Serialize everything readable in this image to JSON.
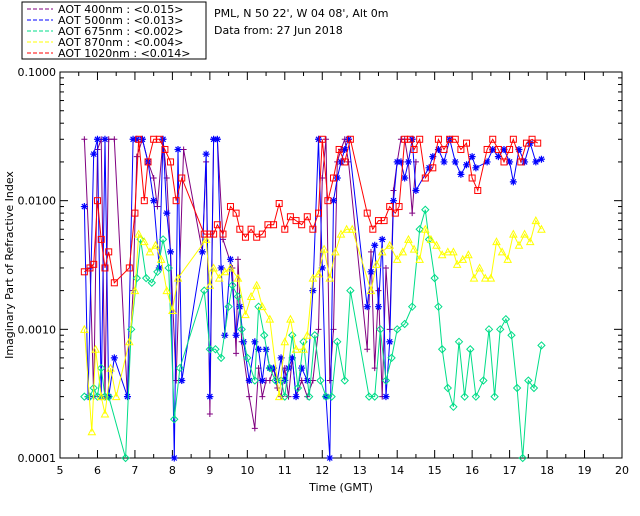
{
  "chart_data": {
    "type": "line",
    "title": "",
    "station": "PML, N 50 22', W 04 08', Alt 0m",
    "date_text": "Data from: 27 Jun 2018",
    "xlabel": "Time (GMT)",
    "ylabel": "Imaginary Part of Refractive Index",
    "xlim": [
      5,
      20
    ],
    "ylim": [
      0.0001,
      0.1
    ],
    "yscale": "log",
    "x_ticks": [
      "5",
      "6",
      "7",
      "8",
      "9",
      "10",
      "11",
      "12",
      "13",
      "14",
      "15",
      "16",
      "17",
      "18",
      "19",
      "20"
    ],
    "y_ticks": [
      "0.0001",
      "0.0010",
      "0.0100",
      "0.1000"
    ],
    "legend_position": "top-left",
    "series": [
      {
        "name": "AOT  400nm : <0.015>",
        "color": "#800080",
        "marker": "plus",
        "x": [
          5.65,
          5.8,
          5.9,
          6.0,
          6.1,
          6.2,
          6.3,
          6.45,
          6.8,
          6.95,
          7.05,
          7.2,
          7.35,
          7.5,
          7.6,
          7.75,
          7.85,
          7.95,
          8.1,
          8.3,
          8.8,
          8.9,
          9.0,
          9.1,
          9.2,
          9.35,
          9.6,
          9.7,
          9.75,
          9.85,
          10.05,
          10.2,
          10.3,
          10.4,
          10.5,
          10.6,
          10.7,
          10.8,
          10.9,
          11.0,
          11.1,
          11.2,
          11.3,
          11.45,
          11.6,
          11.75,
          11.9,
          12.0,
          12.1,
          12.2,
          12.3,
          12.4,
          12.5,
          12.6,
          12.7,
          13.2,
          13.3,
          13.4,
          13.5,
          13.6,
          13.7,
          13.8,
          13.9,
          14.0,
          14.1,
          14.2,
          14.3,
          14.4,
          14.5
        ],
        "y": [
          0.03,
          0.003,
          0.0003,
          0.025,
          0.03,
          0.0003,
          0.03,
          0.03,
          0.0003,
          0.002,
          0.022,
          0.03,
          0.02,
          0.015,
          0.009,
          0.03,
          0.015,
          0.004,
          0.0004,
          0.025,
          0.004,
          0.02,
          0.00022,
          0.03,
          0.03,
          0.005,
          0.003,
          0.00065,
          0.0035,
          0.0008,
          0.0003,
          0.00017,
          0.0005,
          0.0003,
          0.0004,
          0.0004,
          0.0005,
          0.00035,
          0.0003,
          0.0005,
          0.0003,
          0.0006,
          0.0003,
          0.0004,
          0.0003,
          0.0004,
          0.001,
          0.015,
          0.03,
          0.0004,
          0.001,
          0.02,
          0.025,
          0.03,
          0.02,
          0.0007,
          0.004,
          0.0005,
          0.002,
          0.0003,
          0.003,
          0.001,
          0.012,
          0.02,
          0.03,
          0.03,
          0.02,
          0.008,
          0.02
        ]
      },
      {
        "name": "AOT  500nm : <0.013>",
        "color": "#0000ff",
        "marker": "asterisk",
        "x": [
          5.65,
          5.75,
          5.9,
          6.0,
          6.1,
          6.2,
          6.3,
          6.45,
          6.8,
          6.95,
          7.05,
          7.2,
          7.35,
          7.5,
          7.65,
          7.75,
          7.85,
          7.95,
          8.05,
          8.15,
          8.25,
          8.8,
          8.9,
          9.0,
          9.1,
          9.2,
          9.3,
          9.4,
          9.55,
          9.7,
          9.8,
          9.9,
          10.05,
          10.2,
          10.3,
          10.4,
          10.5,
          10.6,
          10.7,
          10.8,
          10.9,
          11.0,
          11.1,
          11.2,
          11.3,
          11.45,
          11.6,
          11.75,
          11.9,
          12.0,
          12.1,
          12.2,
          12.3,
          12.4,
          12.5,
          12.6,
          12.7,
          13.2,
          13.3,
          13.4,
          13.5,
          13.6,
          13.7,
          13.8,
          13.9,
          14.0,
          14.1,
          14.2,
          14.3,
          14.4,
          14.5,
          14.85,
          14.95,
          15.1,
          15.25,
          15.4,
          15.55,
          15.7,
          15.85,
          16.0,
          16.1,
          16.4,
          16.55,
          16.7,
          16.85,
          17.0,
          17.1,
          17.25,
          17.4,
          17.55,
          17.7,
          17.85
        ],
        "y": [
          0.009,
          0.0003,
          0.023,
          0.03,
          0.0003,
          0.03,
          0.0003,
          0.0006,
          0.0003,
          0.03,
          0.03,
          0.03,
          0.02,
          0.01,
          0.003,
          0.03,
          0.008,
          0.004,
          0.0001,
          0.025,
          0.0004,
          0.004,
          0.023,
          0.0003,
          0.03,
          0.03,
          0.003,
          0.0009,
          0.0035,
          0.0009,
          0.0015,
          0.0008,
          0.0004,
          0.0008,
          0.0007,
          0.0004,
          0.0007,
          0.0005,
          0.0005,
          0.0004,
          0.0006,
          0.0004,
          0.0005,
          0.0006,
          0.0003,
          0.0005,
          0.0004,
          0.002,
          0.03,
          0.003,
          0.0003,
          0.0001,
          0.01,
          0.015,
          0.02,
          0.025,
          0.03,
          0.0015,
          0.0028,
          0.0045,
          0.0015,
          0.005,
          0.0003,
          0.0008,
          0.01,
          0.02,
          0.02,
          0.015,
          0.02,
          0.03,
          0.012,
          0.018,
          0.022,
          0.025,
          0.02,
          0.03,
          0.02,
          0.016,
          0.019,
          0.022,
          0.018,
          0.02,
          0.025,
          0.022,
          0.025,
          0.02,
          0.014,
          0.025,
          0.02,
          0.028,
          0.02,
          0.021
        ]
      },
      {
        "name": "AOT  675nm : <0.002>",
        "color": "#00dd88",
        "marker": "diamond",
        "x": [
          5.65,
          5.8,
          5.9,
          6.0,
          6.1,
          6.2,
          6.3,
          6.75,
          6.9,
          7.05,
          7.15,
          7.3,
          7.45,
          7.6,
          7.75,
          7.9,
          8.05,
          8.2,
          8.85,
          9.0,
          9.15,
          9.3,
          9.5,
          9.6,
          9.75,
          9.85,
          10.0,
          10.2,
          10.3,
          10.45,
          10.6,
          10.75,
          10.9,
          11.0,
          11.2,
          11.35,
          11.5,
          11.65,
          11.8,
          11.95,
          12.1,
          12.25,
          12.4,
          12.6,
          12.75,
          13.25,
          13.4,
          13.55,
          13.7,
          13.85,
          14.0,
          14.2,
          14.4,
          14.6,
          14.75,
          14.85,
          15.0,
          15.1,
          15.2,
          15.35,
          15.5,
          15.65,
          15.8,
          15.95,
          16.1,
          16.3,
          16.45,
          16.6,
          16.75,
          16.9,
          17.05,
          17.2,
          17.35,
          17.5,
          17.65,
          17.85
        ],
        "y": [
          0.0003,
          0.0003,
          0.00035,
          0.0003,
          0.0005,
          0.0003,
          0.0003,
          0.0001,
          0.001,
          0.0025,
          0.005,
          0.0025,
          0.0023,
          0.0028,
          0.005,
          0.003,
          0.0002,
          0.0005,
          0.002,
          0.0007,
          0.0007,
          0.0006,
          0.0015,
          0.0022,
          0.0018,
          0.001,
          0.0006,
          0.0004,
          0.0015,
          0.0009,
          0.0005,
          0.0004,
          0.0004,
          0.0003,
          0.0009,
          0.00035,
          0.0008,
          0.0003,
          0.0009,
          0.0004,
          0.0003,
          0.0003,
          0.0008,
          0.0004,
          0.002,
          0.0003,
          0.0003,
          0.001,
          0.0004,
          0.0006,
          0.001,
          0.0011,
          0.0015,
          0.006,
          0.0085,
          0.005,
          0.0025,
          0.0015,
          0.0007,
          0.00035,
          0.00025,
          0.0008,
          0.0003,
          0.0007,
          0.0003,
          0.0004,
          0.001,
          0.0003,
          0.001,
          0.0012,
          0.0009,
          0.00035,
          0.0001,
          0.0004,
          0.00035,
          0.00075
        ]
      },
      {
        "name": "AOT  870nm : <0.004>",
        "color": "#ffff00",
        "marker": "triangle",
        "x": [
          5.65,
          5.85,
          5.95,
          6.1,
          6.2,
          6.35,
          6.5,
          6.85,
          7.0,
          7.1,
          7.25,
          7.4,
          7.55,
          7.7,
          7.85,
          8.0,
          8.15,
          8.9,
          9.0,
          9.1,
          9.25,
          9.4,
          9.55,
          9.75,
          9.95,
          10.1,
          10.25,
          10.4,
          10.6,
          10.85,
          11.0,
          11.15,
          11.3,
          11.5,
          11.6,
          11.75,
          11.9,
          12.05,
          12.2,
          12.35,
          12.5,
          12.65,
          12.8,
          13.3,
          13.45,
          13.6,
          13.8,
          14.0,
          14.15,
          14.3,
          14.45,
          14.6,
          14.75,
          14.9,
          15.05,
          15.2,
          15.35,
          15.5,
          15.6,
          15.75,
          15.9,
          16.05,
          16.2,
          16.35,
          16.5,
          16.65,
          16.8,
          16.95,
          17.1,
          17.25,
          17.4,
          17.55,
          17.7,
          17.85
        ],
        "y": [
          0.001,
          0.00016,
          0.0007,
          0.0003,
          0.00022,
          0.0005,
          0.0003,
          0.0008,
          0.002,
          0.0055,
          0.0048,
          0.004,
          0.0045,
          0.0035,
          0.002,
          0.0014,
          0.0025,
          0.005,
          0.0022,
          0.003,
          0.0025,
          0.0028,
          0.003,
          0.0025,
          0.0013,
          0.0018,
          0.0022,
          0.0015,
          0.0012,
          0.0003,
          0.0008,
          0.0012,
          0.0007,
          0.0007,
          0.0009,
          0.0025,
          0.0027,
          0.0042,
          0.0025,
          0.004,
          0.0055,
          0.006,
          0.006,
          0.002,
          0.0032,
          0.004,
          0.0045,
          0.0035,
          0.004,
          0.005,
          0.0042,
          0.0035,
          0.006,
          0.005,
          0.0045,
          0.0038,
          0.004,
          0.004,
          0.0032,
          0.0035,
          0.0038,
          0.0025,
          0.003,
          0.0025,
          0.0025,
          0.0048,
          0.004,
          0.0035,
          0.0055,
          0.0045,
          0.0055,
          0.0048,
          0.007,
          0.006
        ]
      },
      {
        "name": "AOT 1020nm : <0.014>",
        "color": "#ff0000",
        "marker": "square",
        "x": [
          5.65,
          5.8,
          5.9,
          6.0,
          6.1,
          6.2,
          6.3,
          6.45,
          6.85,
          7.0,
          7.1,
          7.25,
          7.35,
          7.5,
          7.65,
          7.8,
          7.95,
          8.1,
          8.25,
          8.85,
          9.0,
          9.1,
          9.2,
          9.35,
          9.55,
          9.7,
          9.8,
          9.95,
          10.1,
          10.25,
          10.4,
          10.55,
          10.7,
          10.85,
          11.0,
          11.15,
          11.3,
          11.45,
          11.6,
          11.75,
          11.9,
          12.0,
          12.15,
          12.3,
          12.45,
          12.6,
          12.75,
          13.2,
          13.35,
          13.5,
          13.65,
          13.8,
          13.95,
          14.05,
          14.2,
          14.35,
          14.45,
          14.6,
          14.75,
          14.95,
          15.1,
          15.25,
          15.4,
          15.55,
          15.7,
          15.85,
          16.0,
          16.15,
          16.4,
          16.55,
          16.7,
          16.85,
          17.0,
          17.1,
          17.3,
          17.45,
          17.6,
          17.75
        ],
        "y": [
          0.0028,
          0.003,
          0.0032,
          0.01,
          0.005,
          0.003,
          0.004,
          0.0023,
          0.003,
          0.008,
          0.03,
          0.01,
          0.02,
          0.03,
          0.03,
          0.025,
          0.02,
          0.01,
          0.015,
          0.0055,
          0.0055,
          0.0055,
          0.0065,
          0.0055,
          0.009,
          0.008,
          0.006,
          0.0052,
          0.006,
          0.0052,
          0.0055,
          0.0065,
          0.0065,
          0.0095,
          0.006,
          0.0075,
          0.007,
          0.0065,
          0.0075,
          0.006,
          0.008,
          0.03,
          0.01,
          0.015,
          0.025,
          0.02,
          0.03,
          0.008,
          0.006,
          0.007,
          0.007,
          0.009,
          0.008,
          0.009,
          0.03,
          0.03,
          0.025,
          0.03,
          0.015,
          0.018,
          0.03,
          0.025,
          0.03,
          0.03,
          0.025,
          0.028,
          0.015,
          0.012,
          0.025,
          0.03,
          0.025,
          0.02,
          0.025,
          0.03,
          0.02,
          0.028,
          0.03,
          0.028
        ]
      }
    ]
  }
}
